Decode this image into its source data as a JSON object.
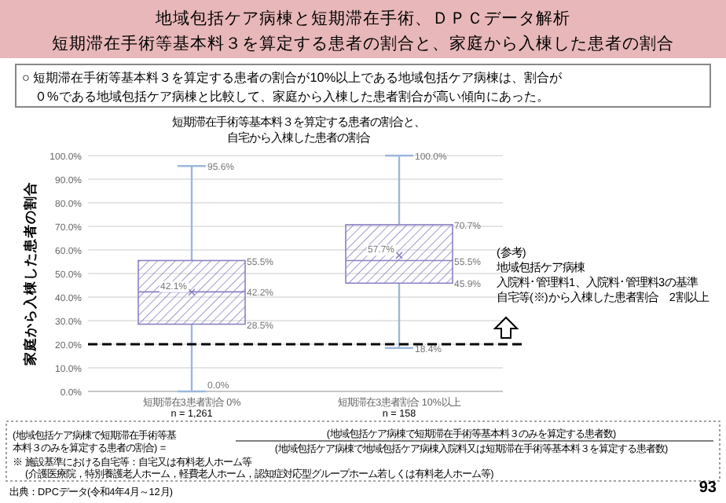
{
  "chart_data": {
    "type": "box",
    "title": "地域包括ケア病棟と短期滞在手術、ＤＰＣデータ解析",
    "subtitle": "短期滞在手術等基本料３を算定する患者の割合と、家庭から入棟した患者の割合",
    "ylabel": "家庭から入棟した患者の割合",
    "categories": [
      "短期滞在3患者割合 0%",
      "短期滞在3患者割合 10%以上"
    ],
    "boxes": [
      {
        "low": 0,
        "q1": 28.5,
        "median": 42.2,
        "q3": 55.5,
        "high": 95.6,
        "mean": 42.1
      },
      {
        "low": 18.4,
        "q1": 45.9,
        "median": 55.5,
        "q3": 70.7,
        "high": 100,
        "mean": 57.7
      }
    ],
    "color": "#8a82c4",
    "ylim": [
      0,
      100
    ],
    "yticks": [
      {
        "value": 0,
        "label": "0.0%"
      },
      {
        "value": 10,
        "label": "10.0%"
      },
      {
        "value": 20,
        "label": "20.0%"
      },
      {
        "value": 30,
        "label": "30.0%"
      },
      {
        "value": 40,
        "label": "40.0%"
      },
      {
        "value": 50,
        "label": "50.0%"
      },
      {
        "value": 60,
        "label": "60.0%"
      },
      {
        "value": 70,
        "label": "70.0%"
      },
      {
        "value": 80,
        "label": "80.0%"
      },
      {
        "value": 90,
        "label": "90.0%"
      },
      {
        "value": 100,
        "label": "100.0%"
      }
    ],
    "grid": "y",
    "ref_lines": [
      {
        "axis": "y",
        "value": 20,
        "color": "#000000",
        "line_style": "dashed"
      }
    ],
    "annotations": [
      "○ 短期滞在手術等基本料３を算定する患者の割合が10%以上である地域包括ケア病棟は、割合が０%である地域包括ケア病棟と比較して、家庭から入棟した患者割合が高い傾向にあった。",
      "短期滞在手術等基本料３を算定する患者の割合と、",
      "自宅から入棟した患者の割合",
      "(参考)",
      "地域包括ケア病棟",
      "入院料･管理料1、入院料･管理料3の基準",
      "自宅等(※)から入棟した患者割合　2割以上",
      "n = 1,261",
      "n = 158",
      "(地域包括ケア病棟で短期滞在手術等基本料３のみを算定する患者の割合) =",
      "(地域包括ケア病棟で短期滞在手術等基本料３のみを算定する患者数)",
      "(地域包括ケア病棟で地域包括ケア病棟入院料又は短期滞在手術等基本料３を算定する患者数)",
      "※ 施設基準における自宅等：自宅又は有料老人ホーム等(介護医療院，特別養護老人ホーム，軽費老人ホーム，認知症対応型グループホーム若しくは有料老人ホーム等)",
      "出典：DPCデータ(令和4年4月～12月)",
      "93",
      {
        "text": "95.6%",
        "x": "短期滞在3患者割合 0%",
        "y": 95.6
      },
      "55.5%",
      "42.2%",
      "28.5%",
      {
        "text": "0.0%",
        "x": "短期滞在3患者割合 0%",
        "y": 0
      },
      {
        "text": "42.1%",
        "x": "短期滞在3患者割合 0%",
        "y": 42.1
      },
      {
        "text": "100.0%",
        "x": "短期滞在3患者割合 10%以上",
        "y": 100
      },
      "70.7%",
      "55.5%",
      "45.9%",
      {
        "text": "18.4%",
        "x": "短期滞在3患者割合 10%以上",
        "y": 18.4
      },
      {
        "text": "57.7%",
        "x": "短期滞在3患者割合 10%以上",
        "y": 57.7
      }
    ]
  }
}
